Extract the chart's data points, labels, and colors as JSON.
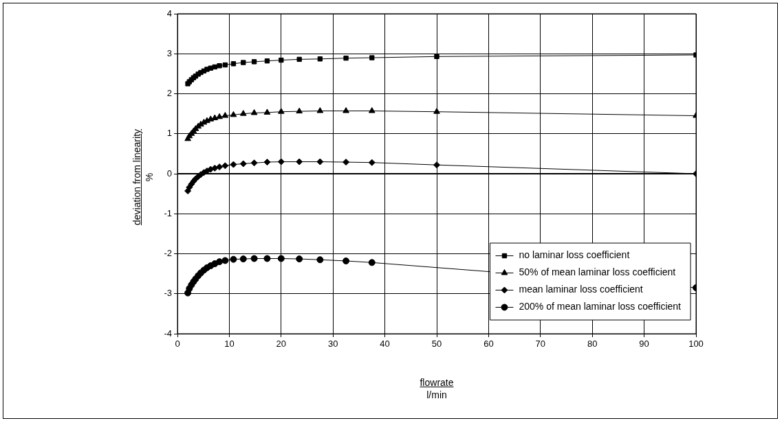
{
  "chart_data": {
    "type": "line",
    "xlabel": "flowrate\nl/min",
    "ylabel": "deviation from linearity\n%",
    "x": [
      100,
      50,
      37.5,
      32.5,
      27.5,
      23.5,
      20,
      17.3,
      14.8,
      12.7,
      10.8,
      9.2,
      8.1,
      7.2,
      6.4,
      5.7,
      5.1,
      4.5,
      4,
      3.5,
      3.1,
      2.7,
      2.3,
      2
    ],
    "xlim": [
      0,
      100
    ],
    "xticks": [
      0,
      10,
      20,
      30,
      40,
      50,
      60,
      70,
      80,
      90,
      100
    ],
    "ylim": [
      -4,
      4
    ],
    "yticks": [
      -4,
      -3,
      -2,
      -1,
      0,
      1,
      2,
      3,
      4
    ],
    "grid": true,
    "legend": "bottom right",
    "line_style": "solid",
    "ref_lines": [
      {
        "axis": "y",
        "value": 0,
        "color": "#000000"
      }
    ],
    "series": [
      {
        "name": "no laminar loss coefficient",
        "color": "#000000",
        "marker": "square",
        "values": [
          2.97,
          2.93,
          2.9,
          2.89,
          2.87,
          2.86,
          2.84,
          2.82,
          2.8,
          2.78,
          2.75,
          2.72,
          2.7,
          2.67,
          2.64,
          2.61,
          2.57,
          2.53,
          2.49,
          2.44,
          2.4,
          2.35,
          2.3,
          2.25
        ]
      },
      {
        "name": "50% of mean laminar loss coefficient",
        "color": "#000000",
        "marker": "triangle",
        "values": [
          1.45,
          1.55,
          1.57,
          1.57,
          1.57,
          1.56,
          1.55,
          1.53,
          1.52,
          1.5,
          1.47,
          1.45,
          1.42,
          1.39,
          1.36,
          1.32,
          1.28,
          1.23,
          1.18,
          1.12,
          1.06,
          1.0,
          0.94,
          0.87
        ]
      },
      {
        "name": "mean laminar loss coefficient",
        "color": "#000000",
        "marker": "diamond",
        "values": [
          0,
          0.22,
          0.28,
          0.29,
          0.3,
          0.3,
          0.3,
          0.29,
          0.27,
          0.25,
          0.23,
          0.2,
          0.17,
          0.14,
          0.11,
          0.07,
          0.03,
          -0.02,
          -0.07,
          -0.13,
          -0.19,
          -0.26,
          -0.34,
          -0.43
        ]
      },
      {
        "name": "200% of mean laminar loss coefficient",
        "color": "#000000",
        "marker": "circle",
        "values": [
          -2.85,
          null,
          -2.22,
          -2.18,
          -2.15,
          -2.13,
          -2.12,
          -2.12,
          -2.12,
          -2.13,
          -2.14,
          -2.17,
          -2.2,
          -2.25,
          -2.3,
          -2.35,
          -2.41,
          -2.48,
          -2.55,
          -2.63,
          -2.7,
          -2.78,
          -2.87,
          -2.98
        ]
      }
    ]
  }
}
